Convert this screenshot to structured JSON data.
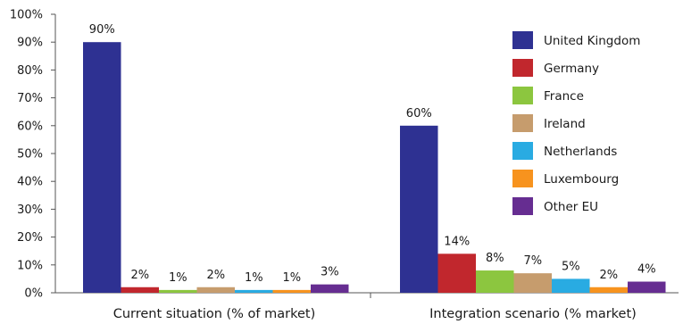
{
  "chart_data": {
    "type": "bar",
    "title": "",
    "xlabel": "",
    "ylabel": "",
    "ylim": [
      0,
      100
    ],
    "y_ticks": [
      "0%",
      "10%",
      "20%",
      "30%",
      "40%",
      "50%",
      "60%",
      "70%",
      "80%",
      "90%",
      "100%"
    ],
    "grid": false,
    "legend_position": "top-right",
    "categories": [
      "Current situation (% of market)",
      "Integration scenario (% market)"
    ],
    "series": [
      {
        "name": "United Kingdom",
        "color": "#2E3192",
        "values": [
          90,
          60
        ],
        "labels": [
          "90%",
          "60%"
        ]
      },
      {
        "name": "Germany",
        "color": "#C1272D",
        "values": [
          2,
          14
        ],
        "labels": [
          "2%",
          "14%"
        ]
      },
      {
        "name": "France",
        "color": "#8CC63F",
        "values": [
          1,
          8
        ],
        "labels": [
          "1%",
          "8%"
        ]
      },
      {
        "name": "Ireland",
        "color": "#C69C6D",
        "values": [
          2,
          7
        ],
        "labels": [
          "2%",
          "7%"
        ]
      },
      {
        "name": "Netherlands",
        "color": "#29ABE2",
        "values": [
          1,
          5
        ],
        "labels": [
          "1%",
          "5%"
        ]
      },
      {
        "name": "Luxembourg",
        "color": "#F7931E",
        "values": [
          1,
          2
        ],
        "labels": [
          "1%",
          "2%"
        ]
      },
      {
        "name": "Other EU",
        "color": "#662D91",
        "values": [
          3,
          4
        ],
        "labels": [
          "3%",
          "4%"
        ]
      }
    ]
  }
}
